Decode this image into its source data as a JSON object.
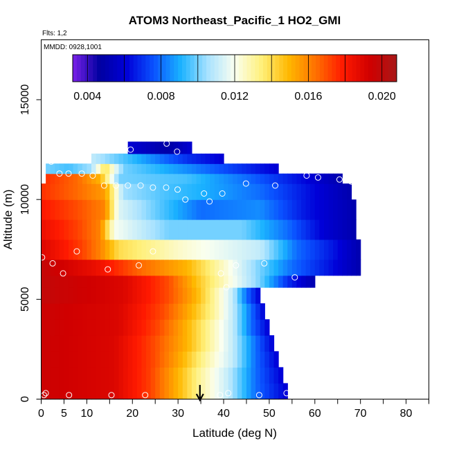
{
  "chart_data": {
    "type": "heatmap",
    "title": "ATOM3 Northeast_Pacific_1 HO2_GMI",
    "flights_note": "Flts: 1,2",
    "date_note": "MMDD: 0928,1001",
    "xlabel": "Latitude (deg N)",
    "ylabel": "Altitude (m)",
    "xlim": [
      0,
      85
    ],
    "ylim": [
      0,
      18000
    ],
    "x_ticks": [
      0,
      5,
      10,
      20,
      30,
      40,
      50,
      60,
      70,
      80
    ],
    "x_minor_ticks": [
      15,
      25,
      35,
      45,
      55,
      65,
      75,
      85
    ],
    "y_ticks": [
      0,
      5000,
      10000,
      15000
    ],
    "colorbar": {
      "ticks": [
        0.004,
        0.008,
        0.012,
        0.016,
        0.02
      ],
      "tick_labels": [
        "0.004",
        "0.008",
        "0.012",
        "0.016",
        "0.020"
      ],
      "range": [
        0.0032,
        0.0208
      ],
      "color_stops": [
        "#7a22e8",
        "#0000a0",
        "#0000d8",
        "#0a52ff",
        "#1ab2ff",
        "#a8e2ff",
        "#fafff0",
        "#fff07a",
        "#ffb800",
        "#ff7000",
        "#ff1a00",
        "#d00000",
        "#a81818"
      ]
    },
    "altitude_bands": [
      {
        "y": [
          0,
          800
        ],
        "x": [
          0,
          54
        ],
        "stops": [
          [
            0,
            0.0195
          ],
          [
            16,
            0.019
          ],
          [
            24,
            0.0172
          ],
          [
            30,
            0.015
          ],
          [
            35,
            0.013
          ],
          [
            41,
            0.011
          ],
          [
            47,
            0.008
          ],
          [
            54,
            0.006
          ]
        ]
      },
      {
        "y": [
          800,
          1600
        ],
        "x": [
          0,
          53
        ],
        "stops": [
          [
            0,
            0.0195
          ],
          [
            16,
            0.019
          ],
          [
            24,
            0.0172
          ],
          [
            30,
            0.015
          ],
          [
            35,
            0.013
          ],
          [
            41,
            0.011
          ],
          [
            47,
            0.008
          ],
          [
            53,
            0.006
          ]
        ]
      },
      {
        "y": [
          1600,
          2400
        ],
        "x": [
          0,
          52
        ],
        "stops": [
          [
            0,
            0.0195
          ],
          [
            16,
            0.019
          ],
          [
            25,
            0.017
          ],
          [
            31,
            0.015
          ],
          [
            36,
            0.013
          ],
          [
            42,
            0.011
          ],
          [
            47,
            0.008
          ],
          [
            52,
            0.006
          ]
        ]
      },
      {
        "y": [
          2400,
          3200
        ],
        "x": [
          0,
          51
        ],
        "stops": [
          [
            0,
            0.0195
          ],
          [
            16,
            0.019
          ],
          [
            25,
            0.017
          ],
          [
            32,
            0.015
          ],
          [
            37,
            0.013
          ],
          [
            42,
            0.011
          ],
          [
            47,
            0.008
          ],
          [
            51,
            0.006
          ]
        ]
      },
      {
        "y": [
          3200,
          4000
        ],
        "x": [
          0,
          50
        ],
        "stops": [
          [
            0,
            0.0195
          ],
          [
            17,
            0.019
          ],
          [
            26,
            0.017
          ],
          [
            32,
            0.015
          ],
          [
            37,
            0.013
          ],
          [
            42,
            0.011
          ],
          [
            46,
            0.008
          ],
          [
            50,
            0.006
          ]
        ]
      },
      {
        "y": [
          4000,
          4800
        ],
        "x": [
          0,
          49
        ],
        "stops": [
          [
            0,
            0.0195
          ],
          [
            17,
            0.019
          ],
          [
            27,
            0.017
          ],
          [
            33,
            0.015
          ],
          [
            38,
            0.013
          ],
          [
            42,
            0.011
          ],
          [
            46,
            0.008
          ],
          [
            49,
            0.006
          ]
        ]
      },
      {
        "y": [
          4800,
          5600
        ],
        "x": [
          0,
          48
        ],
        "stops": [
          [
            0,
            0.0198
          ],
          [
            18,
            0.019
          ],
          [
            28,
            0.017
          ],
          [
            34,
            0.015
          ],
          [
            38,
            0.013
          ],
          [
            42,
            0.011
          ],
          [
            45,
            0.008
          ],
          [
            48,
            0.006
          ]
        ]
      },
      {
        "y": [
          5600,
          6200
        ],
        "x": [
          0,
          60
        ],
        "stops": [
          [
            0,
            0.0198
          ],
          [
            18,
            0.019
          ],
          [
            28,
            0.017
          ],
          [
            36,
            0.014
          ],
          [
            42,
            0.012
          ],
          [
            48,
            0.01
          ],
          [
            54,
            0.007
          ],
          [
            60,
            0.005
          ]
        ]
      },
      {
        "y": [
          6200,
          7000
        ],
        "x": [
          0,
          70
        ],
        "stops": [
          [
            0,
            0.0198
          ],
          [
            12,
            0.0185
          ],
          [
            22,
            0.0165
          ],
          [
            32,
            0.015
          ],
          [
            40,
            0.0125
          ],
          [
            48,
            0.01
          ],
          [
            55,
            0.008
          ],
          [
            63,
            0.0065
          ],
          [
            70,
            0.005
          ]
        ]
      },
      {
        "y": [
          7000,
          8000
        ],
        "x": [
          0,
          70
        ],
        "stops": [
          [
            0,
            0.019
          ],
          [
            9,
            0.0172
          ],
          [
            13,
            0.016
          ],
          [
            17,
            0.014
          ],
          [
            30,
            0.0125
          ],
          [
            48,
            0.011
          ],
          [
            56,
            0.008
          ],
          [
            64,
            0.0065
          ],
          [
            70,
            0.005
          ]
        ]
      },
      {
        "y": [
          8000,
          9000
        ],
        "x": [
          0,
          69
        ],
        "stops": [
          [
            0,
            0.0185
          ],
          [
            8,
            0.0172
          ],
          [
            13,
            0.016
          ],
          [
            16,
            0.012
          ],
          [
            28,
            0.01
          ],
          [
            44,
            0.01
          ],
          [
            54,
            0.008
          ],
          [
            62,
            0.006
          ],
          [
            69,
            0.005
          ]
        ]
      },
      {
        "y": [
          9000,
          10000
        ],
        "x": [
          0,
          69
        ],
        "stops": [
          [
            0,
            0.018
          ],
          [
            8,
            0.017
          ],
          [
            14,
            0.016
          ],
          [
            17,
            0.0115
          ],
          [
            27,
            0.0095
          ],
          [
            35,
            0.008
          ],
          [
            48,
            0.0085
          ],
          [
            58,
            0.0065
          ],
          [
            69,
            0.005
          ]
        ]
      },
      {
        "y": [
          10000,
          10800
        ],
        "x": [
          0,
          68
        ],
        "stops": [
          [
            0,
            0.0175
          ],
          [
            8,
            0.0165
          ],
          [
            14,
            0.0155
          ],
          [
            18,
            0.0105
          ],
          [
            28,
            0.0095
          ],
          [
            36,
            0.009
          ],
          [
            48,
            0.008
          ],
          [
            58,
            0.0065
          ],
          [
            68,
            0.005
          ]
        ]
      },
      {
        "y": [
          10800,
          11300
        ],
        "x": [
          1,
          66
        ],
        "stops": [
          [
            1,
            0.0175
          ],
          [
            8,
            0.0165
          ],
          [
            13,
            0.015
          ],
          [
            17,
            0.01
          ],
          [
            32,
            0.0095
          ],
          [
            45,
            0.008
          ],
          [
            56,
            0.0065
          ],
          [
            66,
            0.005
          ]
        ]
      },
      {
        "y": [
          11300,
          11800
        ],
        "x": [
          1,
          52
        ],
        "stops": [
          [
            1,
            0.01
          ],
          [
            6,
            0.0095
          ],
          [
            11,
            0.0105
          ],
          [
            14,
            0.014
          ],
          [
            18,
            0.01
          ],
          [
            32,
            0.0085
          ],
          [
            44,
            0.007
          ],
          [
            52,
            0.006
          ]
        ]
      },
      {
        "y": [
          11800,
          12300
        ],
        "x": [
          11,
          40
        ],
        "stops": [
          [
            11,
            0.011
          ],
          [
            16,
            0.01
          ],
          [
            24,
            0.0085
          ],
          [
            32,
            0.007
          ],
          [
            40,
            0.006
          ]
        ]
      },
      {
        "y": [
          12300,
          12900
        ],
        "x": [
          19,
          33
        ],
        "stops": [
          [
            19,
            0.006
          ],
          [
            23,
            0.0055
          ],
          [
            28,
            0.0048
          ],
          [
            33,
            0.006
          ]
        ]
      }
    ],
    "observation_points": [
      {
        "lat": 0.2,
        "alt": 7100
      },
      {
        "lat": 2.5,
        "alt": 6800
      },
      {
        "lat": 4.8,
        "alt": 6300
      },
      {
        "lat": 7.8,
        "alt": 7400
      },
      {
        "lat": 14.6,
        "alt": 6500
      },
      {
        "lat": 21.4,
        "alt": 6700
      },
      {
        "lat": 24.5,
        "alt": 7400
      },
      {
        "lat": 39.4,
        "alt": 6300
      },
      {
        "lat": 40.6,
        "alt": 5600
      },
      {
        "lat": 42.7,
        "alt": 6700
      },
      {
        "lat": 48.9,
        "alt": 6800
      },
      {
        "lat": 52.4,
        "alt": 5400
      },
      {
        "lat": 55.6,
        "alt": 6100
      },
      {
        "lat": 70.8,
        "alt": 6200
      },
      {
        "lat": 2.2,
        "alt": 11900
      },
      {
        "lat": 4.0,
        "alt": 11300
      },
      {
        "lat": 6.0,
        "alt": 11300
      },
      {
        "lat": 8.9,
        "alt": 11300
      },
      {
        "lat": 11.3,
        "alt": 11200
      },
      {
        "lat": 13.8,
        "alt": 10700
      },
      {
        "lat": 16.4,
        "alt": 10700
      },
      {
        "lat": 19.0,
        "alt": 10700
      },
      {
        "lat": 21.8,
        "alt": 10700
      },
      {
        "lat": 24.5,
        "alt": 10600
      },
      {
        "lat": 27.4,
        "alt": 10600
      },
      {
        "lat": 29.9,
        "alt": 10500
      },
      {
        "lat": 31.6,
        "alt": 10000
      },
      {
        "lat": 35.7,
        "alt": 10300
      },
      {
        "lat": 36.9,
        "alt": 9900
      },
      {
        "lat": 39.7,
        "alt": 10300
      },
      {
        "lat": 44.9,
        "alt": 10800
      },
      {
        "lat": 51.3,
        "alt": 10700
      },
      {
        "lat": 58.2,
        "alt": 11200
      },
      {
        "lat": 60.7,
        "alt": 11100
      },
      {
        "lat": 65.4,
        "alt": 11000
      },
      {
        "lat": 68.0,
        "alt": 10900
      },
      {
        "lat": 19.6,
        "alt": 12500
      },
      {
        "lat": 27.5,
        "alt": 12800
      },
      {
        "lat": 29.8,
        "alt": 12400
      },
      {
        "lat": 0.6,
        "alt": 200
      },
      {
        "lat": 1.0,
        "alt": 300
      },
      {
        "lat": 6.1,
        "alt": 200
      },
      {
        "lat": 15.4,
        "alt": 200
      },
      {
        "lat": 22.8,
        "alt": 200
      },
      {
        "lat": 39.2,
        "alt": 200
      },
      {
        "lat": 41.0,
        "alt": 300
      },
      {
        "lat": 47.8,
        "alt": 200
      },
      {
        "lat": 53.8,
        "alt": 300
      }
    ],
    "marker_latitude": 34.8
  }
}
